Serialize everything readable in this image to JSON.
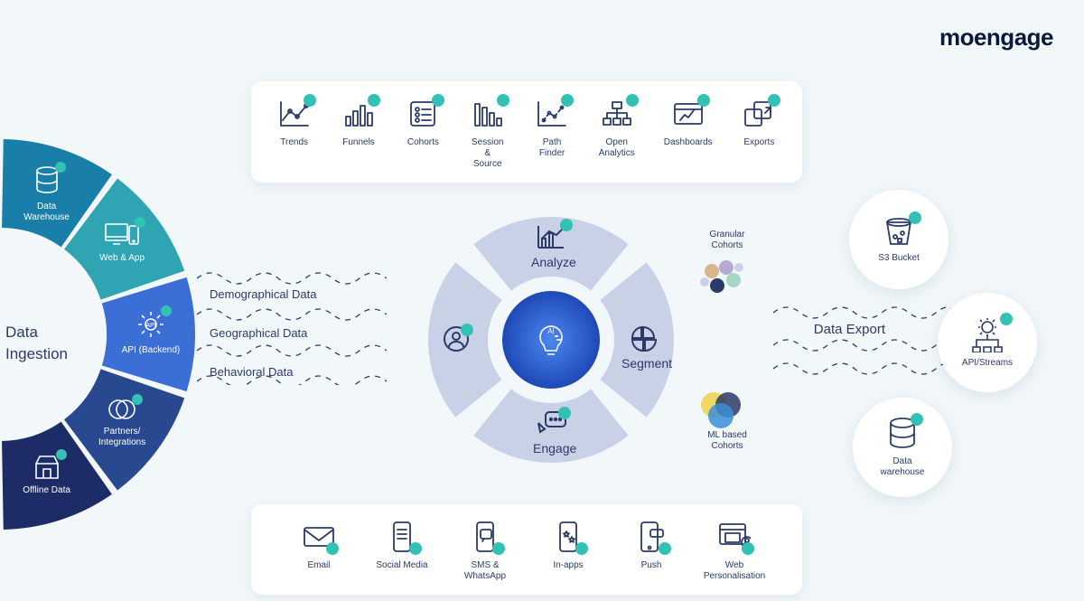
{
  "brand": {
    "name": "moengage",
    "color": "#0b1a3b"
  },
  "background_color": "#f2f8fa",
  "accent_teal": "#32c1b4",
  "stroke_navy": "#2b3a67",
  "top_card": {
    "items": [
      {
        "label": "Trends",
        "icon": "line-chart"
      },
      {
        "label": "Funnels",
        "icon": "bars-asc"
      },
      {
        "label": "Cohorts",
        "icon": "checklist"
      },
      {
        "label": "Session & Source",
        "icon": "bars-desc"
      },
      {
        "label": "Path Finder",
        "icon": "scatter-path"
      },
      {
        "label": "Open Analytics",
        "icon": "sitemap"
      },
      {
        "label": "Dashboards",
        "icon": "dashboard-win"
      },
      {
        "label": "Exports",
        "icon": "export-arrow"
      }
    ]
  },
  "bottom_card": {
    "items": [
      {
        "label": "Email",
        "icon": "envelope"
      },
      {
        "label": "Social Media",
        "icon": "phone-feed"
      },
      {
        "label": "SMS & WhatsApp",
        "icon": "phone-chat"
      },
      {
        "label": "In-apps",
        "icon": "phone-stars"
      },
      {
        "label": "Push",
        "icon": "phone-push"
      },
      {
        "label": "Web Personalisation",
        "icon": "browser-user"
      }
    ]
  },
  "ingestion": {
    "title_line1": "Data",
    "title_line2": "Ingestion",
    "wedges": [
      {
        "label": "Data\nWarehouse",
        "icon": "database",
        "color": "#1a7fa8"
      },
      {
        "label": "Web & App",
        "icon": "devices",
        "color": "#2fa4b2"
      },
      {
        "label": "API (Backend)",
        "icon": "gear-api",
        "color": "#3b6fd6"
      },
      {
        "label": "Partners/\nIntegrations",
        "icon": "venn",
        "color": "#28498f"
      },
      {
        "label": "Offline Data",
        "icon": "store",
        "color": "#1d2c66"
      }
    ]
  },
  "data_streams": {
    "items": [
      "Demographical Data",
      "Geographical Data",
      "Behavioral Data"
    ]
  },
  "center": {
    "hub_icon": "ai-bulb",
    "hub_color": "#2b5fd9",
    "ring_color": "#c8d1e6",
    "quadrants": [
      {
        "label": "Analyze",
        "icon": "analytics",
        "pos": "top"
      },
      {
        "label": "Segment",
        "icon": "pie-quads",
        "pos": "right"
      },
      {
        "label": "Engage",
        "icon": "chat-check",
        "pos": "bottom"
      },
      {
        "label": "",
        "icon": "person",
        "pos": "left"
      }
    ]
  },
  "cohorts": {
    "granular": {
      "label": "Granular\nCohorts"
    },
    "ml": {
      "label": "ML based\nCohorts"
    }
  },
  "export": {
    "title": "Data Export",
    "circles": [
      {
        "label": "S3 Bucket",
        "icon": "bucket"
      },
      {
        "label": "API/Streams",
        "icon": "gear-tree"
      },
      {
        "label": "Data\nwarehouse",
        "icon": "database"
      }
    ]
  }
}
